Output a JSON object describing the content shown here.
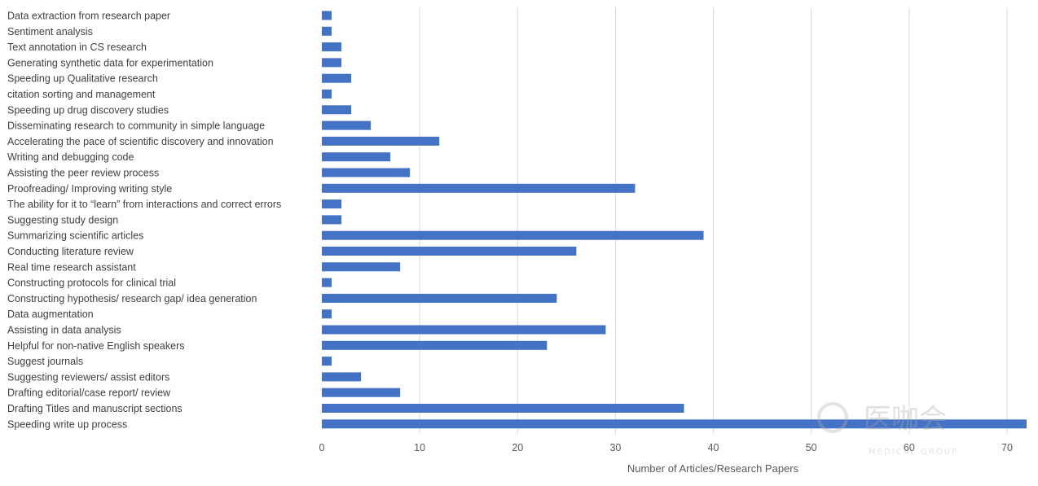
{
  "chart_data": {
    "type": "bar",
    "orientation": "horizontal",
    "categories": [
      "Data extraction from research paper",
      "Sentiment analysis",
      "Text annotation in CS research",
      "Generating synthetic data for experimentation",
      "Speeding up Qualitative research",
      "citation sorting and management",
      "Speeding up drug discovery studies",
      "Disseminating research to community in simple language",
      "Accelerating the pace of scientific discovery and innovation",
      "Writing and debugging code",
      "Assisting the peer review process",
      "Proofreading/ Improving writing style",
      "The ability for it to “learn” from interactions and correct errors",
      "Suggesting study design",
      "Summarizing scientific articles",
      "Conducting literature review",
      "Real time research assistant",
      "Constructing protocols for clinical trial",
      "Constructing hypothesis/ research gap/ idea generation",
      "Data augmentation",
      "Assisting in data analysis",
      "Helpful for non-native English speakers",
      "Suggest journals",
      "Suggesting reviewers/ assist editors",
      "Drafting editorial/case report/ review",
      "Drafting Titles and manuscript sections",
      "Speeding write up process"
    ],
    "values": [
      1,
      1,
      2,
      2,
      3,
      1,
      3,
      5,
      12,
      7,
      9,
      32,
      2,
      2,
      39,
      26,
      8,
      1,
      24,
      1,
      29,
      23,
      1,
      4,
      8,
      37,
      72
    ],
    "xticks": [
      0,
      10,
      20,
      30,
      40,
      50,
      60,
      70
    ],
    "xlim": [
      0,
      72
    ],
    "xlabel": "Number of Articles/Research Papers",
    "ylabel": "",
    "title": "",
    "grid": "vertical",
    "legend": "none",
    "bar_color": "#4472c4",
    "grid_color": "#d9d9d9"
  },
  "watermark": {
    "text": "医咖会",
    "subtext": "MEDICAL GROUP"
  }
}
